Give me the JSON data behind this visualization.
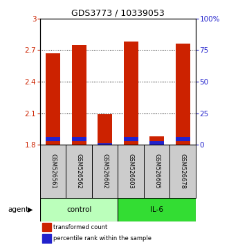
{
  "title": "GDS3773 / 10339053",
  "samples": [
    "GSM526561",
    "GSM526562",
    "GSM526602",
    "GSM526603",
    "GSM526605",
    "GSM526678"
  ],
  "groups": [
    "control",
    "control",
    "control",
    "IL-6",
    "IL-6",
    "IL-6"
  ],
  "red_top": [
    2.67,
    2.75,
    2.09,
    2.78,
    1.88,
    2.76
  ],
  "blue_top": [
    1.875,
    1.875,
    1.815,
    1.875,
    1.835,
    1.875
  ],
  "blue_bottom": [
    1.835,
    1.835,
    1.8,
    1.835,
    1.8,
    1.835
  ],
  "bar_bottom": 1.8,
  "ylim_left": [
    1.8,
    3.0
  ],
  "yticks_left": [
    1.8,
    2.1,
    2.4,
    2.7,
    3.0
  ],
  "ytick_labels_left": [
    "1.8",
    "2.1",
    "2.4",
    "2.7",
    "3"
  ],
  "yticks_right": [
    0,
    25,
    50,
    75,
    100
  ],
  "ytick_labels_right": [
    "0",
    "25",
    "50",
    "75",
    "100%"
  ],
  "red_color": "#cc2200",
  "blue_color": "#2222cc",
  "control_color": "#bbffbb",
  "il6_color": "#33dd33",
  "agent_label": "agent",
  "control_label": "control",
  "il6_label": "IL-6",
  "legend_red": "transformed count",
  "legend_blue": "percentile rank within the sample",
  "bar_width": 0.55,
  "sample_box_color": "#cccccc"
}
